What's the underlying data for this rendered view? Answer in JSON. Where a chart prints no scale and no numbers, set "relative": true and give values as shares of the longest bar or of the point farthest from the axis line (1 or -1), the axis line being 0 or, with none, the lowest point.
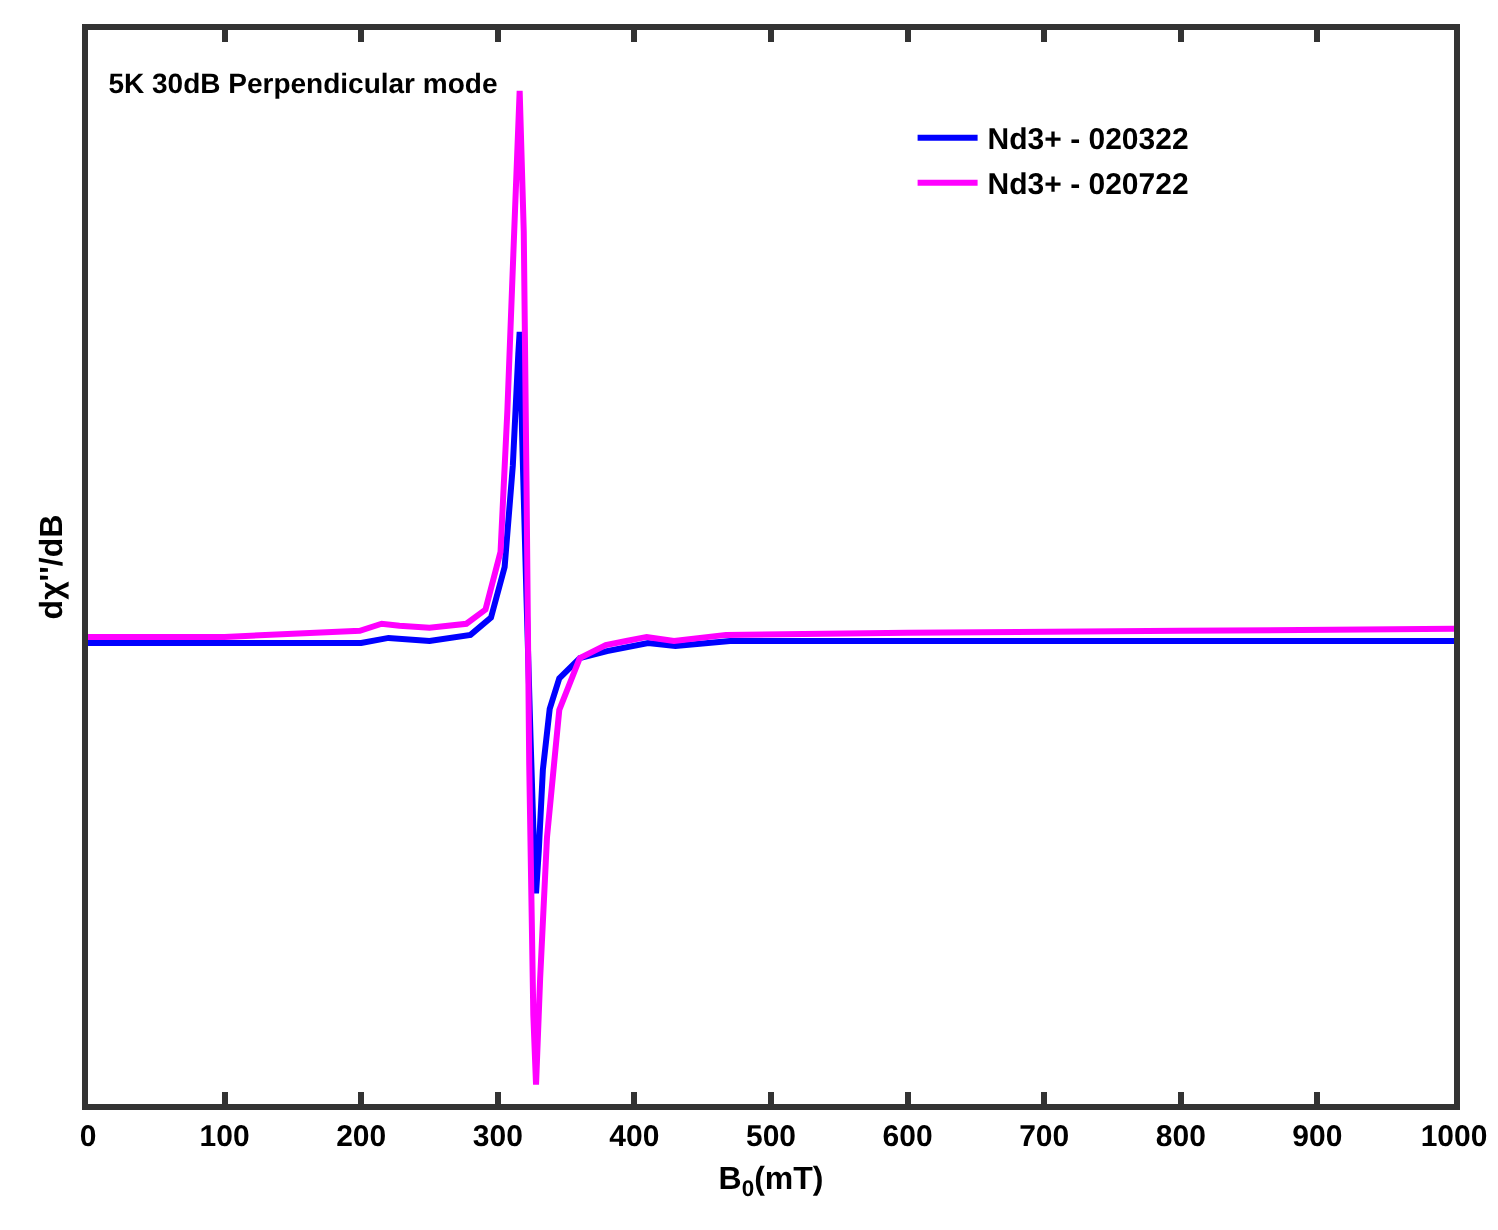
{
  "chart_data": {
    "type": "line",
    "title": "5K 30dB Perpendicular mode",
    "xlabel": "B$_{0}$(mT)",
    "ylabel": "dχ''/dB",
    "relative": true,
    "xlim": [
      0,
      1000
    ],
    "xticks": [
      0,
      100,
      200,
      300,
      400,
      500,
      600,
      700,
      800,
      900,
      1000
    ],
    "grid": false,
    "legend": "top right",
    "marker": "none",
    "line_style": "solid",
    "series": [
      {
        "name": "Nd3+ - 020322",
        "color": "#0000ff",
        "x": [
          0,
          100,
          200,
          220,
          250,
          280,
          295,
          305,
          311,
          315,
          316,
          318,
          321,
          324,
          327,
          328,
          330,
          333,
          338,
          345,
          360,
          380,
          410,
          430,
          470,
          600,
          800,
          1000
        ],
        "values": [
          0.455,
          0.455,
          0.455,
          0.46,
          0.457,
          0.463,
          0.48,
          0.53,
          0.63,
          0.74,
          0.762,
          0.65,
          0.5,
          0.36,
          0.23,
          0.208,
          0.25,
          0.33,
          0.39,
          0.42,
          0.44,
          0.447,
          0.455,
          0.452,
          0.457,
          0.457,
          0.457,
          0.457
        ]
      },
      {
        "name": "Nd3+ - 020722",
        "color": "#ff00ff",
        "x": [
          0,
          100,
          199,
          215,
          228,
          250,
          277,
          291,
          302,
          307,
          312,
          316,
          319,
          321,
          323,
          326,
          328,
          331,
          336,
          345,
          360,
          379,
          394,
          409,
          429,
          467,
          600,
          800,
          1000
        ],
        "values": [
          0.461,
          0.461,
          0.467,
          0.474,
          0.472,
          0.47,
          0.474,
          0.488,
          0.545,
          0.684,
          0.861,
          1,
          0.861,
          0.615,
          0.335,
          0.088,
          0.019,
          0.124,
          0.263,
          0.389,
          0.44,
          0.453,
          0.457,
          0.461,
          0.457,
          0.463,
          0.465,
          0.467,
          0.469
        ]
      }
    ]
  }
}
